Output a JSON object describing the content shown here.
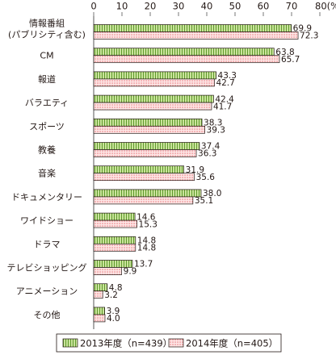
{
  "chart_data": {
    "type": "bar",
    "orientation": "horizontal",
    "categories": [
      [
        "情報番組",
        "(パブリシティ含む)"
      ],
      [
        "CM"
      ],
      [
        "報道"
      ],
      [
        "バラエティ"
      ],
      [
        "スポーツ"
      ],
      [
        "教養"
      ],
      [
        "音楽"
      ],
      [
        "ドキュメンタリー"
      ],
      [
        "ワイドショー"
      ],
      [
        "ドラマ"
      ],
      [
        "テレビショッピング"
      ],
      [
        "アニメーション"
      ],
      [
        "その他"
      ]
    ],
    "series": [
      {
        "name": "2013年度（n=439）",
        "values": [
          69.9,
          63.8,
          43.3,
          42.4,
          38.3,
          37.4,
          31.9,
          38.0,
          14.6,
          14.8,
          13.7,
          4.8,
          3.9
        ]
      },
      {
        "name": "2014年度（n=405）",
        "values": [
          72.3,
          65.7,
          42.7,
          41.7,
          39.3,
          36.3,
          35.6,
          35.1,
          15.3,
          14.8,
          9.9,
          3.2,
          4.0
        ]
      }
    ],
    "value_labels": [
      [
        "69.9",
        "63.8",
        "43.3",
        "42.4",
        "38.3",
        "37.4",
        "31.9",
        "38.0",
        "14.6",
        "14.8",
        "13.7",
        "4.8",
        "3.9"
      ],
      [
        "72.3",
        "65.7",
        "42.7",
        "41.7",
        "39.3",
        "36.3",
        "35.6",
        "35.1",
        "15.3",
        "14.8",
        "9.9",
        "3.2",
        "4.0"
      ]
    ],
    "x_ticks": [
      "0",
      "10",
      "20",
      "30",
      "40",
      "50",
      "60",
      "70",
      "80(%)"
    ],
    "xlim": [
      0,
      80
    ],
    "grid": false,
    "legend_position": "bottom",
    "colors": {
      "series1_fill": "#c9e39b",
      "series1_stripe": "#5f9a2c",
      "series2_fill": "#fde6e6",
      "series2_dots": "#e0484b",
      "border": "#231815",
      "axis": "#555555"
    }
  }
}
